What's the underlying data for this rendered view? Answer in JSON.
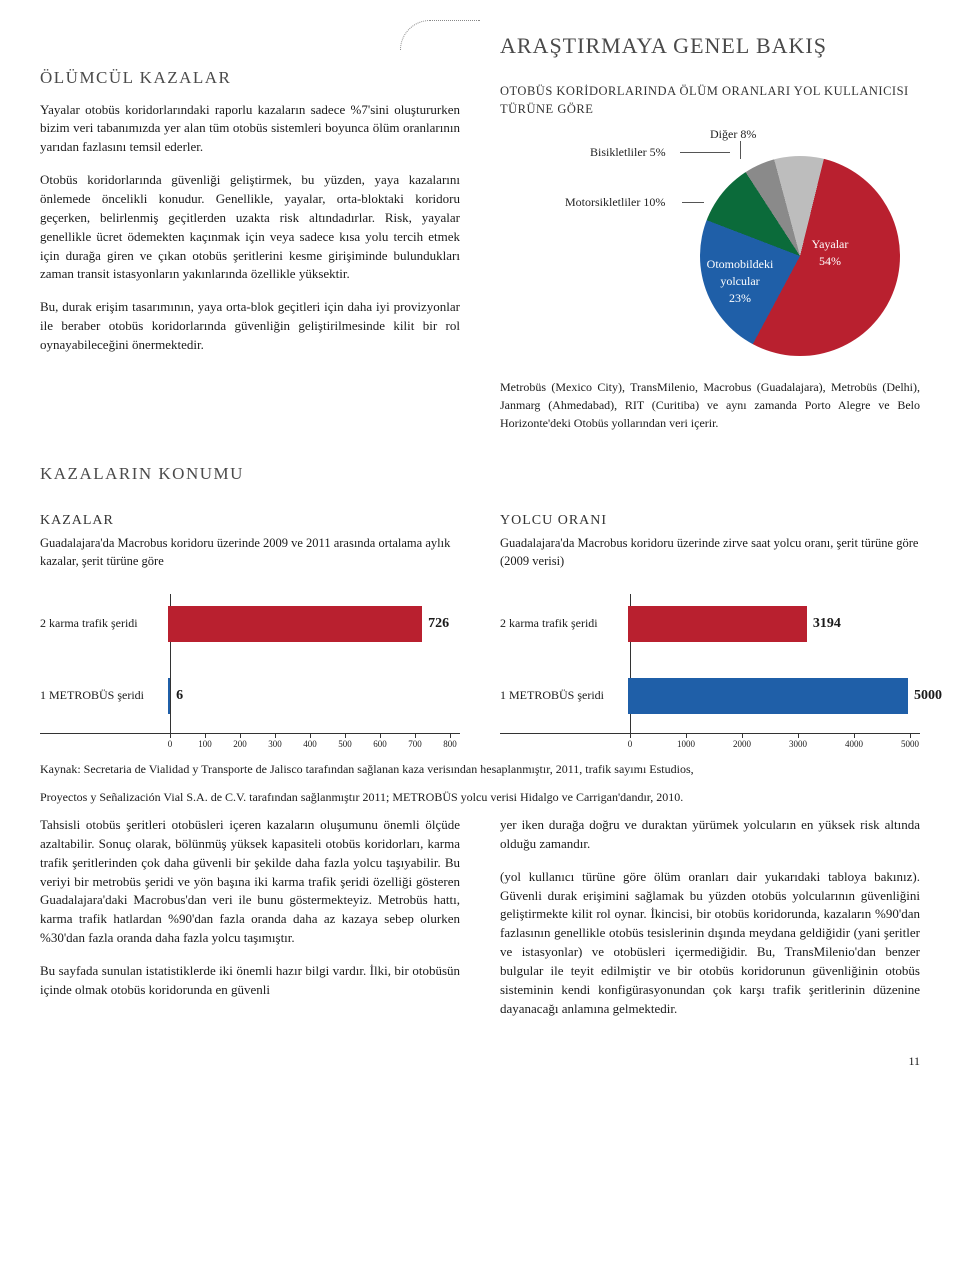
{
  "header": {
    "main_title": "ARAŞTIRMAYA GENEL BAKIŞ"
  },
  "left": {
    "heading": "ÖLÜMCÜL KAZALAR",
    "p1": "Yayalar otobüs koridorlarındaki raporlu kazaların sadece %7'sini oluştururken bizim veri tabanımızda yer alan tüm otobüs sistemleri boyunca ölüm oranlarının yarıdan fazlasını temsil ederler.",
    "p2": "Otobüs koridorlarında güvenliği geliştirmek, bu yüzden, yaya kazalarını önlemede öncelikli konudur. Genellikle, yayalar, orta-bloktaki koridoru geçerken, belirlenmiş geçitlerden uzakta risk altındadırlar. Risk, yayalar genellikle ücret ödemekten kaçınmak için veya sadece kısa yolu tercih etmek için durağa giren ve çıkan otobüs şeritlerini kesme girişiminde bulundukları zaman transit istasyonların yakınlarında özellikle yüksektir.",
    "p3": "Bu, durak erişim tasarımının, yaya orta-blok geçitleri için daha iyi provizyonlar ile beraber otobüs koridorlarında güvenliğin geliştirilmesinde kilit bir rol oynayabileceğini önermektedir."
  },
  "pie": {
    "subtitle": "OTOBÜS KORİDORLARINDA ÖLÜM ORANLARI YOL KULLANICISI TÜRÜNE GÖRE",
    "slices": {
      "yayalar": {
        "label": "Yayalar",
        "value": 54,
        "display": "54%",
        "color": "#b9202f"
      },
      "otomobil": {
        "label1": "Otomobildeki",
        "label2": "yolcular",
        "value": 23,
        "display": "23%",
        "color": "#1f5fa8"
      },
      "motorsiklet": {
        "label": "Motorsikletliler 10%",
        "value": 10,
        "color": "#0b6b3a"
      },
      "bisiklet": {
        "label": "Bisikletliler 5%",
        "value": 5,
        "color": "#8a8a8a"
      },
      "diger": {
        "label": "Diğer 8%",
        "value": 8,
        "color": "#bdbdbd"
      }
    },
    "source": "Metrobüs (Mexico City),   TransMilenio, Macrobus (Guadalajara), Metrobüs (Delhi),  Janmarg (Ahmedabad), RIT (Curitiba) ve aynı zamanda Porto Alegre ve Belo Horizonte'deki Otobüs yollarından veri içerir."
  },
  "location": {
    "heading": "KAZALARIN KONUMU"
  },
  "chart_kazalar": {
    "title": "KAZALAR",
    "desc": "Guadalajara'da Macrobus koridoru üzerinde 2009 ve 2011 arasında ortalama aylık kazalar, şerit türüne göre",
    "xmax": 800,
    "ticks": [
      0,
      100,
      200,
      300,
      400,
      500,
      600,
      700,
      800
    ],
    "tick_labels": [
      "0",
      "100",
      "200",
      "300",
      "400",
      "500",
      "600",
      "700",
      "800"
    ],
    "bars": [
      {
        "category": "2 karma trafik şeridi",
        "value": 726,
        "color": "#b9202f"
      },
      {
        "category": "1 METROBÜS şeridi",
        "value": 6,
        "color": "#1f5fa8"
      }
    ]
  },
  "chart_yolcu": {
    "title": "YOLCU ORANI",
    "desc": "Guadalajara'da Macrobus koridoru üzerinde zirve saat yolcu oranı, şerit türüne göre (2009 verisi)",
    "xmax": 5000,
    "ticks": [
      0,
      1000,
      2000,
      3000,
      4000,
      5000
    ],
    "tick_labels": [
      "0",
      "1000",
      "2000",
      "3000",
      "4000",
      "5000"
    ],
    "bars": [
      {
        "category": "2 karma trafik şeridi",
        "value": 3194,
        "color": "#b9202f"
      },
      {
        "category": "1 METROBÜS şeridi",
        "value": 5000,
        "color": "#1f5fa8"
      }
    ]
  },
  "sources": {
    "line1": "Kaynak: Secretaria de Vialidad y Transporte de Jalisco tarafından sağlanan kaza verisından hesaplanmıştır, 2011, trafik sayımı Estudios,",
    "line2": "Proyectos y Señalización Vial S.A. de C.V. tarafından sağlanmıştır 2011; METROBÜS yolcu verisi Hidalgo ve Carrigan'dandır, 2010."
  },
  "bottom": {
    "left_p1": "Tahsisli otobüs şeritleri otobüsleri içeren kazaların oluşumunu önemli ölçüde azaltabilir.  Sonuç olarak,  bölünmüş yüksek kapasiteli otobüs koridorları, karma trafik şeritlerinden çok daha güvenli bir şekilde daha fazla yolcu taşıyabilir. Bu veriyi bir metrobüs şeridi ve yön başına iki karma trafik şeridi özelliği gösteren Guadalajara'daki Macrobus'dan veri ile bunu göstermekteyiz. Metrobüs hattı, karma trafik hatlardan %90'dan fazla oranda daha az kazaya sebep olurken %30'dan fazla oranda daha fazla yolcu taşımıştır.",
    "left_p2": "Bu sayfada sunulan istatistiklerde iki önemli hazır bilgi vardır. İlki, bir otobüsün içinde olmak otobüs koridorunda en güvenli",
    "right_p1": "yer iken durağa doğru ve duraktan yürümek yolcuların en yüksek risk altında olduğu zamandır.",
    "right_p2": "(yol kullanıcı türüne göre ölüm oranları dair yukarıdaki tabloya bakınız).  Güvenli durak erişimini sağlamak bu yüzden otobüs yolcularının güvenliğini geliştirmekte kilit rol oynar. İkincisi, bir otobüs koridorunda, kazaların %90'dan fazlasının genellikle otobüs tesislerinin dışında meydana geldiğidir (yani şeritler ve istasyonlar) ve otobüsleri içermediğidir. Bu, TransMilenio'dan benzer bulgular ile teyit edilmiştir ve bir otobüs koridorunun güvenliğinin otobüs sisteminin kendi konfigürasyonundan çok karşı trafik şeritlerinin düzenine dayanacağı anlamına gelmektedir."
  },
  "page_number": "11"
}
